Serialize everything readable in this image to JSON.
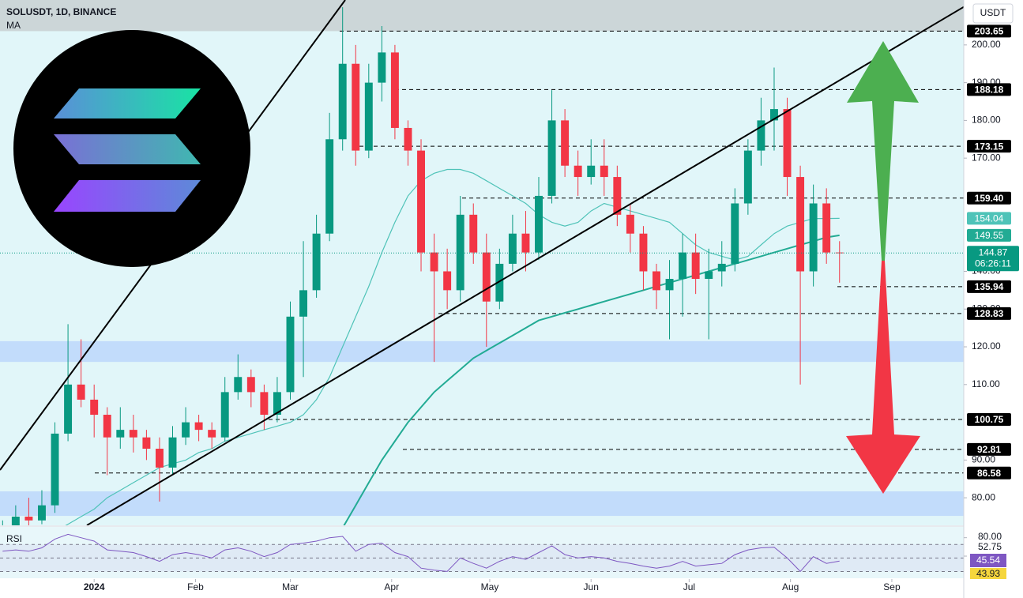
{
  "header": {
    "symbol": "SOLUSDT, 1D, BINANCE",
    "indicator": "MA",
    "currency": "USDT"
  },
  "chart_data": {
    "type": "candlestick",
    "categories": [
      null,
      null,
      null,
      null,
      null,
      null,
      null,
      null,
      null,
      null,
      null,
      null,
      null,
      null,
      null,
      null,
      null,
      null,
      null,
      null,
      null,
      null,
      null,
      null,
      null,
      null,
      null,
      null,
      null,
      null,
      null,
      null,
      null,
      null,
      null,
      null,
      null,
      null,
      null,
      null,
      null,
      null,
      null,
      null,
      null,
      null,
      null,
      null,
      null,
      null,
      null,
      null,
      null,
      null,
      null,
      null,
      null,
      null,
      null,
      null,
      null,
      null,
      null,
      null,
      null
    ],
    "open": [
      62,
      72,
      75,
      74,
      78,
      97,
      110,
      106,
      102,
      96,
      98,
      96,
      93,
      88,
      96,
      100,
      98,
      96,
      108,
      112,
      108,
      102,
      108,
      128,
      135,
      150,
      175,
      195,
      172,
      190,
      198,
      178,
      172,
      145,
      140,
      135,
      155,
      145,
      132,
      142,
      150,
      145,
      160,
      180,
      168,
      165,
      168,
      165,
      155,
      150,
      140,
      135,
      138,
      145,
      138,
      140,
      142,
      158,
      172,
      180,
      183,
      165,
      140,
      158,
      145
    ],
    "high": [
      74,
      78,
      80,
      82,
      100,
      126,
      122,
      110,
      104,
      104,
      102,
      98,
      96,
      99,
      104,
      102,
      100,
      112,
      118,
      114,
      110,
      112,
      132,
      148,
      155,
      182,
      210,
      200,
      195,
      205,
      200,
      180,
      175,
      150,
      146,
      160,
      158,
      150,
      146,
      155,
      156,
      165,
      188,
      183,
      172,
      175,
      175,
      168,
      158,
      152,
      142,
      143,
      150,
      150,
      146,
      148,
      162,
      175,
      186,
      194,
      186,
      168,
      163,
      162,
      148
    ],
    "low": [
      60,
      70,
      72,
      73,
      76,
      95,
      104,
      96,
      86,
      93,
      92,
      90,
      79,
      86,
      94,
      95,
      93,
      95,
      106,
      104,
      98,
      100,
      106,
      112,
      133,
      148,
      172,
      168,
      170,
      185,
      175,
      168,
      140,
      116,
      130,
      132,
      142,
      120,
      130,
      140,
      140,
      143,
      158,
      165,
      160,
      163,
      160,
      152,
      145,
      135,
      130,
      122,
      128,
      134,
      122,
      136,
      140,
      155,
      168,
      172,
      160,
      110,
      136,
      142,
      137
    ],
    "close": [
      72,
      75,
      74,
      78,
      97,
      110,
      106,
      102,
      96,
      98,
      96,
      93,
      88,
      96,
      100,
      98,
      96,
      108,
      112,
      108,
      102,
      108,
      128,
      135,
      150,
      175,
      195,
      172,
      190,
      198,
      178,
      172,
      145,
      140,
      135,
      155,
      145,
      132,
      142,
      150,
      145,
      160,
      180,
      168,
      165,
      168,
      165,
      155,
      150,
      140,
      135,
      138,
      145,
      138,
      140,
      142,
      158,
      172,
      180,
      183,
      165,
      140,
      158,
      145,
      144.87
    ],
    "up_color": "#089981",
    "down_color": "#f23645",
    "xlim": [
      -0.2,
      73.5
    ],
    "xticks": [
      {
        "value": 7,
        "label": "2024"
      },
      {
        "value": 14.75,
        "label": "Feb"
      },
      {
        "value": 22,
        "label": "Mar"
      },
      {
        "value": 29.75,
        "label": "Apr"
      },
      {
        "value": 37.25,
        "label": "May"
      },
      {
        "value": 45,
        "label": "Jun"
      },
      {
        "value": 52.5,
        "label": "Jul"
      },
      {
        "value": 60.25,
        "label": "Aug"
      },
      {
        "value": 68,
        "label": "Sep"
      }
    ],
    "ylim": [
      72.7,
      211.9
    ],
    "yticks": [
      {
        "value": 80,
        "label": "80.00"
      },
      {
        "value": 90,
        "label": "90.00"
      },
      {
        "value": 110,
        "label": "110.00"
      },
      {
        "value": 120,
        "label": "120.00"
      },
      {
        "value": 130,
        "label": "130.00"
      },
      {
        "value": 140,
        "label": "140.00"
      },
      {
        "value": 170,
        "label": "170.00"
      },
      {
        "value": 180,
        "label": "180.00"
      },
      {
        "value": 190,
        "label": "190.00"
      },
      {
        "value": 200,
        "label": "200.00"
      }
    ],
    "moving_averages": [
      {
        "color": "#4fc3b8",
        "values": [
          66,
          67,
          68,
          69,
          71,
          73,
          75,
          77,
          80,
          82,
          84,
          86,
          88,
          89,
          90,
          92,
          93,
          95,
          96,
          97,
          98,
          99,
          100,
          102,
          106,
          112,
          120,
          128,
          136,
          145,
          153,
          160,
          164,
          166,
          167,
          167,
          166,
          164,
          162,
          160,
          158,
          155,
          153,
          152,
          153,
          156,
          158,
          157,
          156,
          155,
          154,
          153,
          150,
          147,
          145,
          144,
          143,
          144,
          147,
          150,
          152,
          153,
          154,
          154,
          154.04
        ]
      },
      {
        "color": "#22ab94",
        "values": [
          null,
          null,
          null,
          null,
          null,
          null,
          null,
          null,
          null,
          null,
          null,
          null,
          null,
          null,
          null,
          null,
          null,
          null,
          null,
          null,
          null,
          null,
          null,
          null,
          null,
          null,
          72,
          78,
          84,
          90,
          95,
          100,
          104,
          108,
          111,
          114,
          117,
          119,
          121,
          123,
          125,
          127,
          128,
          129,
          130,
          131,
          132,
          133,
          134,
          135,
          136,
          137,
          138,
          139,
          140,
          141,
          142,
          143,
          144,
          145,
          146,
          147,
          148,
          149,
          149.55
        ]
      }
    ],
    "levels": [
      203.65,
      188.18,
      173.15,
      {
        "value": 159.4,
        "label": "159.40"
      },
      135.94,
      128.83,
      100.75,
      92.81,
      86.58
    ],
    "zones": [
      [
        116,
        121.5
      ],
      [
        75.2,
        81.7
      ]
    ],
    "countdown": "06:26:11",
    "rsi": {
      "title": "RSI",
      "color": "#7e57c2",
      "ylim": [
        20,
        96
      ],
      "levels": [
        70,
        50,
        30
      ],
      "values": [
        60,
        62,
        60,
        65,
        78,
        85,
        80,
        75,
        62,
        60,
        58,
        52,
        45,
        55,
        58,
        55,
        50,
        62,
        65,
        60,
        52,
        58,
        70,
        72,
        75,
        80,
        82,
        60,
        70,
        72,
        58,
        52,
        35,
        32,
        30,
        50,
        42,
        35,
        45,
        52,
        48,
        58,
        68,
        55,
        50,
        52,
        50,
        45,
        42,
        38,
        35,
        38,
        45,
        38,
        40,
        42,
        55,
        62,
        65,
        66,
        50,
        30,
        52,
        42,
        45.54
      ],
      "yticks": [
        {
          "value": 80,
          "label": "80.00"
        },
        52.75
      ],
      "ma_value": 43.93,
      "ma_color": "#f5d63d"
    }
  }
}
